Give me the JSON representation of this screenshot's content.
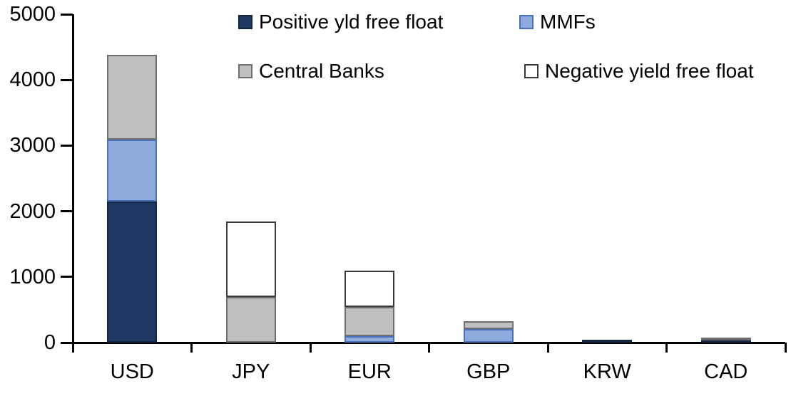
{
  "chart_data": {
    "type": "bar",
    "variant": "stacked",
    "title": "",
    "xlabel": "",
    "ylabel": "",
    "categories": [
      "USD",
      "JPY",
      "EUR",
      "GBP",
      "KRW",
      "CAD"
    ],
    "series": [
      {
        "name": "Positive yld free float",
        "color": "#1F3864",
        "border": "#16253f",
        "values": [
          2150,
          0,
          0,
          0,
          40,
          40
        ]
      },
      {
        "name": "MMFs",
        "color": "#8FAADC",
        "border": "#4a72b8",
        "values": [
          940,
          0,
          100,
          210,
          0,
          0
        ]
      },
      {
        "name": "Central Banks",
        "color": "#BFBFBF",
        "border": "#6e6e6e",
        "values": [
          1290,
          690,
          440,
          120,
          0,
          40
        ]
      },
      {
        "name": "Negative yield free float",
        "color": "#FFFFFF",
        "border": "#3a3a3a",
        "values": [
          0,
          1150,
          560,
          0,
          0,
          0
        ]
      }
    ],
    "totals": [
      4380,
      1840,
      1100,
      330,
      40,
      80
    ],
    "ylim": [
      0,
      5000
    ],
    "yticks": [
      0,
      1000,
      2000,
      3000,
      4000,
      5000
    ],
    "ytick_labels": [
      "0",
      "1000",
      "2000",
      "3000",
      "4000",
      "5000"
    ],
    "grid": false,
    "legend_position": "top",
    "legend_rows": [
      [
        "Positive yld free float",
        "MMFs"
      ],
      [
        "Central Banks",
        "Negative yield free float"
      ]
    ],
    "colors": {
      "background": "#FFFFFF",
      "axis": "#000000",
      "text": "#000000"
    }
  }
}
